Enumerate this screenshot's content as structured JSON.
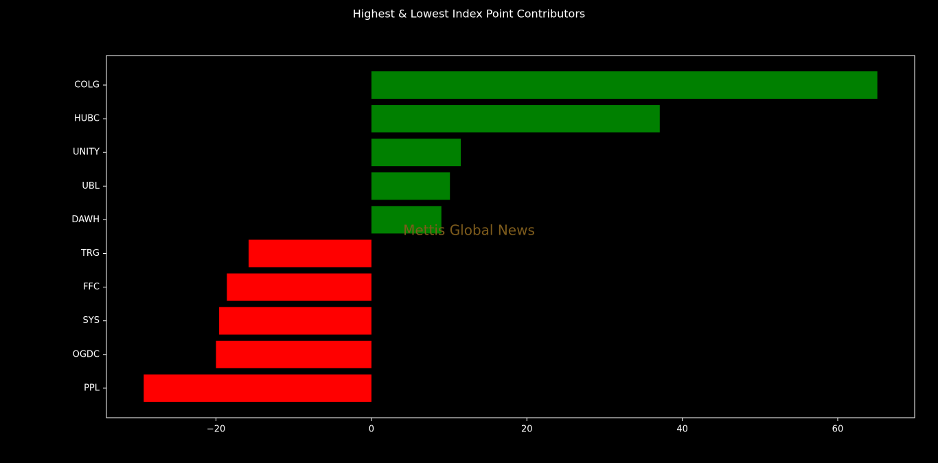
{
  "chart_data": {
    "type": "barh",
    "title": "Highest & Lowest Index Point Contributors",
    "annotation": "Mettis Global News",
    "categories": [
      "COLG",
      "HUBC",
      "UNITY",
      "UBL",
      "DAWH",
      "TRG",
      "FFC",
      "SYS",
      "OGDC",
      "PPL"
    ],
    "values": [
      65.1,
      37.1,
      11.5,
      10.1,
      9.0,
      -15.8,
      -18.6,
      -19.6,
      -20.0,
      -29.3
    ],
    "colors": [
      "#008000",
      "#008000",
      "#008000",
      "#008000",
      "#008000",
      "#ff0000",
      "#ff0000",
      "#ff0000",
      "#ff0000",
      "#ff0000"
    ],
    "xlim": [
      -34.1,
      69.9
    ],
    "xticks": [
      {
        "value": -20,
        "label": "−20"
      },
      0,
      20,
      40,
      60
    ]
  }
}
